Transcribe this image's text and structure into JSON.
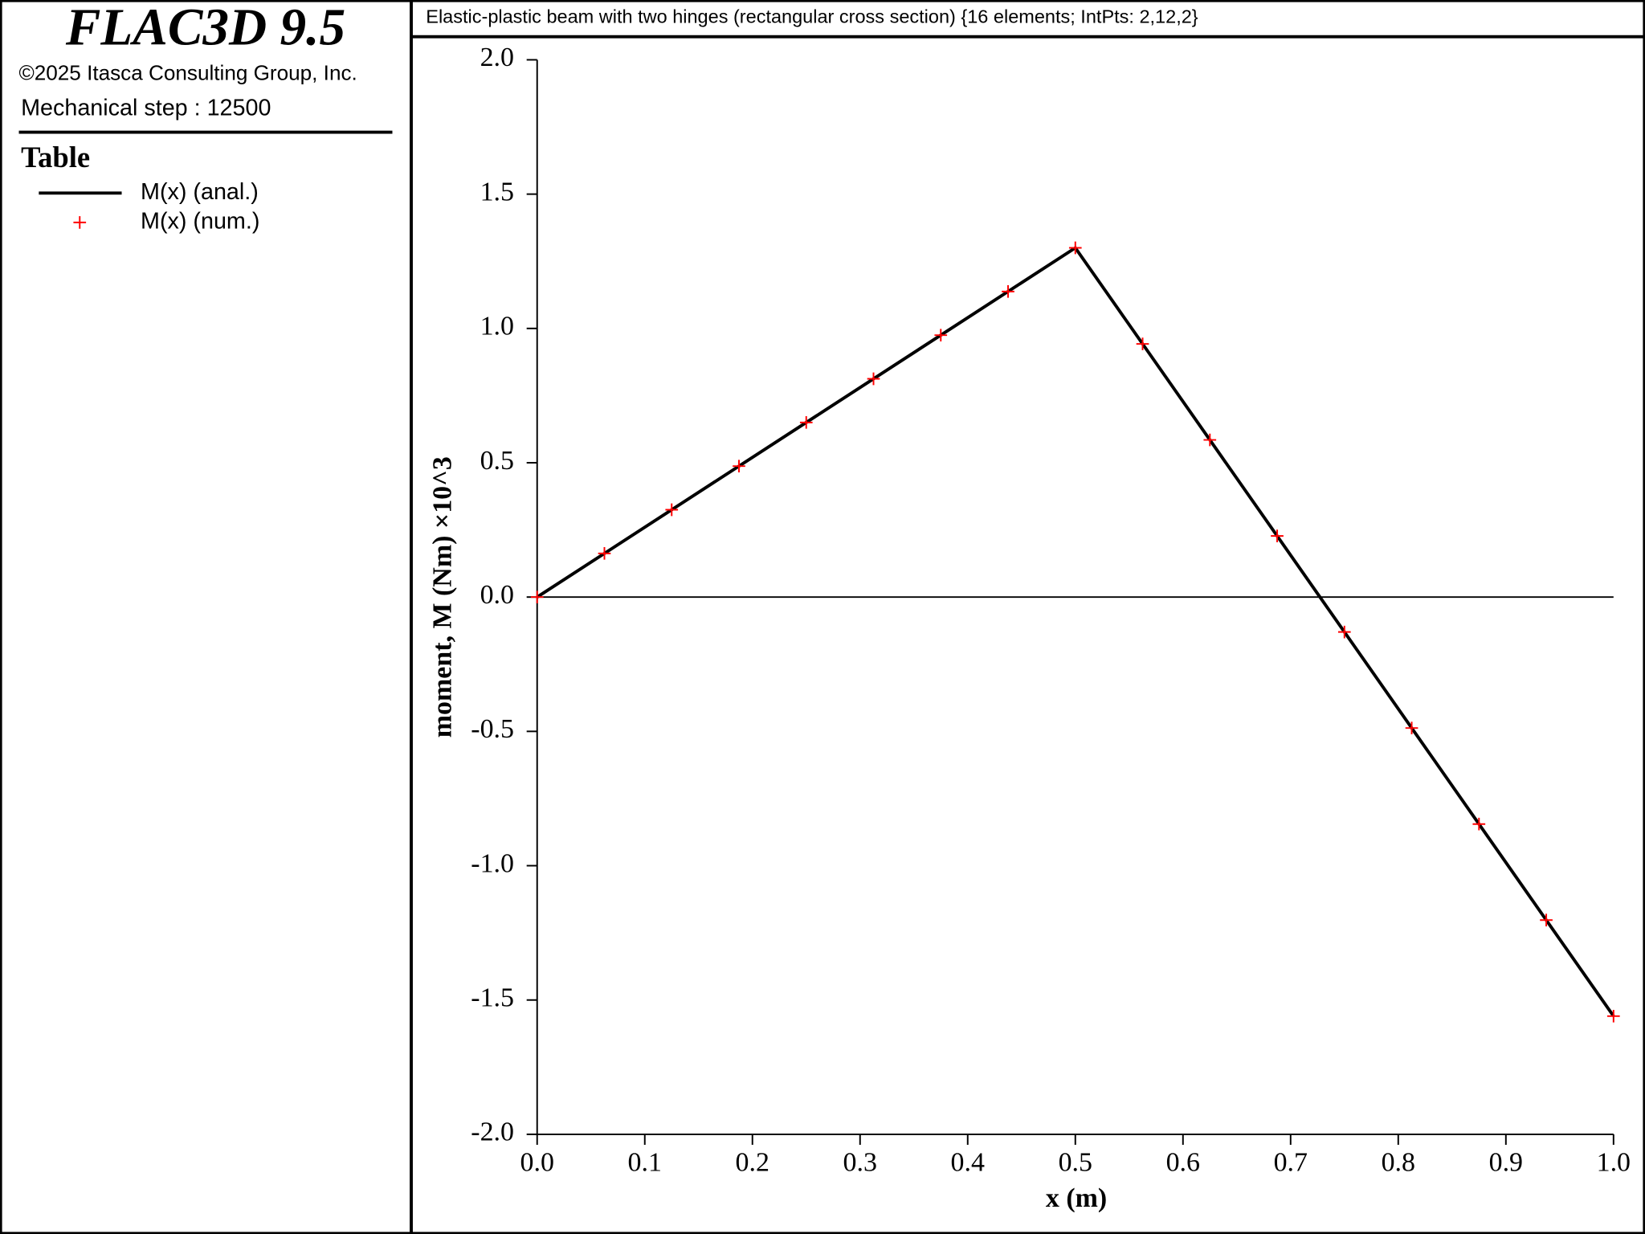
{
  "header": {
    "product": "FLAC3D 9.5",
    "copyright": "©2025 Itasca Consulting Group, Inc.",
    "step": "Mechanical step : 12500"
  },
  "legend": {
    "title": "Table"
  },
  "chart_data": {
    "type": "line",
    "title": "Elastic-plastic beam with two hinges (rectangular cross section) {16 elements; IntPts: 2,12,2}",
    "x_label": "x (m)",
    "y_label": "moment, M (Nm) ×10^3",
    "xlim": [
      0,
      1
    ],
    "ylim": [
      -2,
      2
    ],
    "xticks": [
      {
        "value": 0,
        "label": "0.0"
      },
      0.1,
      0.2,
      0.3,
      0.4,
      0.5,
      0.6,
      0.7,
      0.8,
      0.9,
      {
        "value": 1,
        "label": "1.0"
      }
    ],
    "yticks": [
      {
        "value": -2,
        "label": "-2.0"
      },
      -1.5,
      {
        "value": -1,
        "label": "-1.0"
      },
      -0.5,
      {
        "value": 0,
        "label": "0.0"
      },
      0.5,
      {
        "value": 1,
        "label": "1.0"
      },
      1.5,
      {
        "value": 2,
        "label": "2.0"
      }
    ],
    "series": [
      {
        "name": "M(x) (anal.)",
        "color": "#000000",
        "marker": "none",
        "x": [
          0,
          0.5,
          1
        ],
        "values": [
          0,
          1.3,
          -1.56
        ]
      },
      {
        "name": "M(x) (num.)",
        "color": "#ff0000",
        "marker": "+",
        "x": [
          0,
          0.0625,
          0.125,
          0.1875,
          0.25,
          0.3125,
          0.375,
          0.4375,
          0.5,
          0.5625,
          0.625,
          0.6875,
          0.75,
          0.8125,
          0.875,
          0.9375,
          1
        ],
        "values": [
          0,
          0.1625,
          0.325,
          0.4875,
          0.65,
          0.8125,
          0.975,
          1.1375,
          1.3,
          0.9425,
          0.585,
          0.2275,
          -0.13,
          -0.4875,
          -0.845,
          -1.2025,
          -1.56
        ]
      }
    ]
  }
}
